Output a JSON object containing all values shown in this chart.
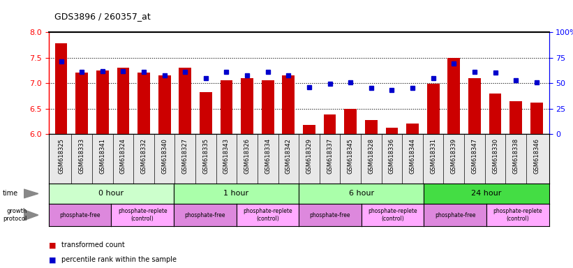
{
  "title": "GDS3896 / 260357_at",
  "samples": [
    "GSM618325",
    "GSM618333",
    "GSM618341",
    "GSM618324",
    "GSM618332",
    "GSM618340",
    "GSM618327",
    "GSM618335",
    "GSM618343",
    "GSM618326",
    "GSM618334",
    "GSM618342",
    "GSM618329",
    "GSM618337",
    "GSM618345",
    "GSM618328",
    "GSM618336",
    "GSM618344",
    "GSM618331",
    "GSM618339",
    "GSM618347",
    "GSM618330",
    "GSM618338",
    "GSM618346"
  ],
  "bar_values": [
    7.78,
    7.2,
    7.25,
    7.3,
    7.2,
    7.15,
    7.3,
    6.82,
    7.05,
    7.1,
    7.05,
    7.15,
    6.18,
    6.38,
    6.5,
    6.28,
    6.12,
    6.2,
    6.98,
    7.5,
    7.1,
    6.8,
    6.65,
    6.62
  ],
  "dot_values": [
    7.42,
    7.22,
    7.24,
    7.24,
    7.22,
    7.15,
    7.22,
    7.1,
    7.22,
    7.15,
    7.22,
    7.15,
    6.92,
    6.98,
    7.02,
    6.9,
    6.87,
    6.9,
    7.1,
    7.38,
    7.22,
    7.2,
    7.05,
    7.02
  ],
  "ylim": [
    6.0,
    8.0
  ],
  "time_groups": [
    {
      "label": "0 hour",
      "start": 0,
      "end": 6,
      "color": "#ccffcc"
    },
    {
      "label": "1 hour",
      "start": 6,
      "end": 12,
      "color": "#aaffaa"
    },
    {
      "label": "6 hour",
      "start": 12,
      "end": 18,
      "color": "#aaffaa"
    },
    {
      "label": "24 hour",
      "start": 18,
      "end": 24,
      "color": "#44dd44"
    }
  ],
  "protocol_groups": [
    {
      "label": "phosphate-free",
      "start": 0,
      "end": 3,
      "color": "#dd88dd"
    },
    {
      "label": "phosphate-replete\n(control)",
      "start": 3,
      "end": 6,
      "color": "#ffaaff"
    },
    {
      "label": "phosphate-free",
      "start": 6,
      "end": 9,
      "color": "#dd88dd"
    },
    {
      "label": "phosphate-replete\n(control)",
      "start": 9,
      "end": 12,
      "color": "#ffaaff"
    },
    {
      "label": "phosphate-free",
      "start": 12,
      "end": 15,
      "color": "#dd88dd"
    },
    {
      "label": "phosphate-replete\n(control)",
      "start": 15,
      "end": 18,
      "color": "#ffaaff"
    },
    {
      "label": "phosphate-free",
      "start": 18,
      "end": 21,
      "color": "#dd88dd"
    },
    {
      "label": "phosphate-replete\n(control)",
      "start": 21,
      "end": 24,
      "color": "#ffaaff"
    }
  ],
  "bar_color": "#cc0000",
  "dot_color": "#0000cc",
  "yticks_left": [
    6.0,
    6.5,
    7.0,
    7.5,
    8.0
  ],
  "yticks_right": [
    0,
    25,
    50,
    75,
    100
  ],
  "ytick_labels_right": [
    "0",
    "25",
    "50",
    "75",
    "100%"
  ]
}
